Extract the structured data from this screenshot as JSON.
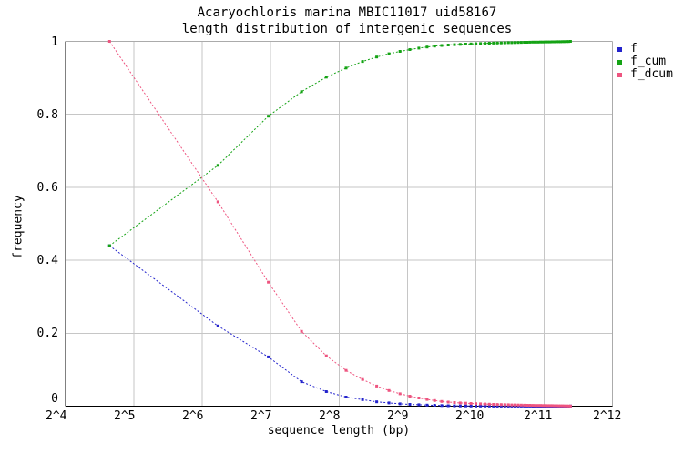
{
  "title": {
    "line1": "Acaryochloris marina MBIC11017 uid58167",
    "line2": "length distribution of intergenic sequences"
  },
  "chart_data": {
    "type": "line",
    "title": "Acaryochloris marina MBIC11017 uid58167 - length distribution of intergenic sequences",
    "xlabel": "sequence length (bp)",
    "ylabel": "frequency",
    "x_scale": "log2",
    "xlim": [
      16,
      4096
    ],
    "ylim": [
      0,
      1
    ],
    "grid": true,
    "legend_position": "outside-top-right",
    "bin_width": 50,
    "x_ticks": [
      16,
      32,
      64,
      128,
      256,
      512,
      1024,
      2048,
      4096
    ],
    "x_tick_labels": [
      "2^4",
      "2^5",
      "2^6",
      "2^7",
      "2^8",
      "2^9",
      "2^10",
      "2^11",
      "2^12"
    ],
    "y_ticks": [
      0,
      0.2,
      0.4,
      0.6,
      0.8,
      1
    ],
    "y_tick_labels": [
      "0",
      "0.2",
      "0.4",
      "0.6",
      "0.8",
      "1"
    ],
    "x": [
      25,
      75,
      125,
      175,
      225,
      275,
      325,
      375,
      425,
      475,
      525,
      575,
      625,
      675,
      725,
      775,
      825,
      875,
      925,
      975,
      1025,
      1075,
      1125,
      1175,
      1225,
      1275,
      1325,
      1375,
      1425,
      1475,
      1525,
      1575,
      1625,
      1675,
      1725,
      1775,
      1825,
      1875,
      1925,
      1975,
      2025,
      2075,
      2125,
      2175,
      2225,
      2275,
      2325,
      2375,
      2425,
      2475,
      2525,
      2575,
      2625,
      2675
    ],
    "series": [
      {
        "name": "f",
        "color": "#2323cc",
        "values": [
          0.44,
          0.22,
          0.135,
          0.067,
          0.04,
          0.025,
          0.018,
          0.012,
          0.009,
          0.0065,
          0.005,
          0.004,
          0.003,
          0.0025,
          0.0017,
          0.0013,
          0.001,
          0.0008,
          0.0007,
          0.0006,
          0.0005,
          0.0005,
          0.0004,
          0.0004,
          0.0003,
          0.0003,
          0.0003,
          0.0003,
          0.0003,
          0.0002,
          0.0002,
          0.0002,
          0.0002,
          0.0002,
          0.0002,
          0.0002,
          0.0001,
          0.0001,
          0.0001,
          0.0001,
          0.0001,
          0.0001,
          0.0001,
          0.0001,
          0.0001,
          0.0001,
          0.0001,
          0.0001,
          0.0001,
          0.0001,
          0.0001,
          0.0001,
          0.0001,
          0.0005
        ]
      },
      {
        "name": "f_cum",
        "color": "#14a314",
        "values": [
          0.44,
          0.66,
          0.795,
          0.862,
          0.902,
          0.927,
          0.945,
          0.957,
          0.966,
          0.9725,
          0.9775,
          0.9815,
          0.9845,
          0.987,
          0.9887,
          0.99,
          0.991,
          0.9918,
          0.9925,
          0.9931,
          0.9936,
          0.9941,
          0.9945,
          0.9949,
          0.9952,
          0.9955,
          0.9958,
          0.9961,
          0.9964,
          0.9966,
          0.9968,
          0.997,
          0.9972,
          0.9974,
          0.9976,
          0.9978,
          0.9979,
          0.998,
          0.9981,
          0.9982,
          0.9983,
          0.9984,
          0.9985,
          0.9986,
          0.9987,
          0.9988,
          0.9989,
          0.999,
          0.9991,
          0.9992,
          0.9993,
          0.9994,
          0.9995,
          1.0
        ]
      },
      {
        "name": "f_dcum",
        "color": "#ee5580",
        "values": [
          1.0,
          0.56,
          0.34,
          0.205,
          0.138,
          0.098,
          0.073,
          0.055,
          0.043,
          0.034,
          0.0275,
          0.0225,
          0.0185,
          0.0155,
          0.013,
          0.0113,
          0.01,
          0.009,
          0.0082,
          0.0075,
          0.0069,
          0.0064,
          0.0059,
          0.0055,
          0.0051,
          0.0048,
          0.0045,
          0.0042,
          0.0039,
          0.0036,
          0.0034,
          0.0032,
          0.003,
          0.0028,
          0.0026,
          0.0024,
          0.0022,
          0.0021,
          0.002,
          0.0019,
          0.0018,
          0.0017,
          0.0016,
          0.0015,
          0.0014,
          0.0013,
          0.0012,
          0.0011,
          0.001,
          0.0009,
          0.0008,
          0.0007,
          0.0006,
          0.0005
        ]
      }
    ]
  },
  "legend": {
    "items": [
      {
        "label": "f",
        "color": "#2323cc"
      },
      {
        "label": "f_cum",
        "color": "#14a314"
      },
      {
        "label": "f_dcum",
        "color": "#ee5580"
      }
    ]
  },
  "colors": {
    "background": "#ffffff",
    "grid": "#c6c6c6",
    "border_gray": "#ababab",
    "axis_black": "#000000"
  }
}
